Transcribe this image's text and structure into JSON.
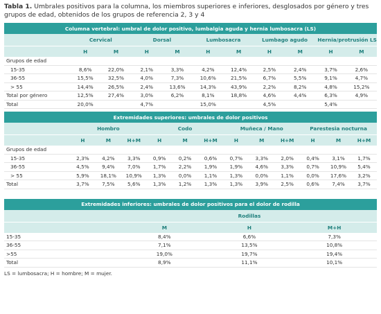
{
  "header": {
    "label": "Tabla 1.",
    "title": "Umbrales positivos para la columna, los miembros superiores e inferiores, desglosados por género y tres grupos de edad, obtenidos de los grupos de referencia 2, 3 y 4"
  },
  "sections": [
    {
      "title": "Columna vertebral: umbral de dolor positivo, lumbalgia aguda y hernia lumbosacra (LS)",
      "groups": [
        {
          "name": "Cervical",
          "columns": [
            "H",
            "M"
          ]
        },
        {
          "name": "Dorsal",
          "columns": [
            "H",
            "M"
          ]
        },
        {
          "name": "Lumbosacra",
          "columns": [
            "H",
            "M"
          ]
        },
        {
          "name": "Lumbago agudo",
          "columns": [
            "H",
            "M"
          ]
        },
        {
          "name": "Hernia/protrusión LS",
          "columns": [
            "H",
            "M"
          ]
        }
      ],
      "rows": [
        {
          "label": "Grupos de edad",
          "cells": []
        },
        {
          "label": "15-35",
          "cells": [
            "8,6%",
            "22,0%",
            "2,1%",
            "3,3%",
            "4,2%",
            "12,4%",
            "2,5%",
            "2,4%",
            "3,7%",
            "2,6%"
          ]
        },
        {
          "label": "36-55",
          "cells": [
            "15,5%",
            "32,5%",
            "4,0%",
            "7,3%",
            "10,6%",
            "21,5%",
            "6,7%",
            "5,5%",
            "9,1%",
            "4,7%"
          ]
        },
        {
          "label": "> 55",
          "cells": [
            "14,4%",
            "26,5%",
            "2,4%",
            "13,6%",
            "14,3%",
            "43,9%",
            "2,2%",
            "8,2%",
            "4,8%",
            "15,2%"
          ]
        },
        {
          "label": "Total por género",
          "cells": [
            "12,5%",
            "27,4%",
            "3,0%",
            "6,2%",
            "8,1%",
            "18,8%",
            "4,6%",
            "4,4%",
            "6,3%",
            "4,9%"
          ]
        },
        {
          "label": "Total",
          "cells": [
            "20,0%",
            null,
            "4,7%",
            null,
            "15,0%",
            null,
            "4,5%",
            null,
            "5,4%",
            null
          ]
        }
      ]
    },
    {
      "title": "Extremidades superiores: umbrales de dolor positivos",
      "groups": [
        {
          "name": "Hombro",
          "columns": [
            "H",
            "M",
            "H+M"
          ]
        },
        {
          "name": "Codo",
          "columns": [
            "H",
            "M",
            "H+M"
          ]
        },
        {
          "name": "Muñeca / Mano",
          "columns": [
            "H",
            "M",
            "H+M"
          ]
        },
        {
          "name": "Parestesia nocturna",
          "columns": [
            "H",
            "M",
            "H+M"
          ]
        }
      ],
      "rows": [
        {
          "label": "Grupos de edad",
          "cells": []
        },
        {
          "label": "15-35",
          "cells": [
            "2,3%",
            "4,2%",
            "3,3%",
            "0,9%",
            "0,2%",
            "0,6%",
            "0,7%",
            "3,3%",
            "2,0%",
            "0,4%",
            "3,1%",
            "1,7%"
          ]
        },
        {
          "label": "36-55",
          "cells": [
            "4,5%",
            "9,4%",
            "7,0%",
            "1,7%",
            "2,2%",
            "1,9%",
            "1,9%",
            "4,6%",
            "3,3%",
            "0,7%",
            "10,9%",
            "5,4%"
          ]
        },
        {
          "label": "> 55",
          "cells": [
            "5,9%",
            "18,1%",
            "10,9%",
            "1,3%",
            "0,0%",
            "1,1%",
            "1,3%",
            "0,0%",
            "1,1%",
            "0,0%",
            "17,6%",
            "3,2%"
          ]
        },
        {
          "label": "Total",
          "cells": [
            "3,7%",
            "7,5%",
            "5,6%",
            "1,3%",
            "1,2%",
            "1,3%",
            "1,3%",
            "3,9%",
            "2,5%",
            "0,6%",
            "7,4%",
            "3,7%"
          ]
        }
      ]
    },
    {
      "title": "Extremidades inferiores: umbrales de dolor positivos para el dolor de rodilla",
      "groups": [
        {
          "name": "Rodillas",
          "columns": [
            "M",
            "H",
            "M+H"
          ]
        }
      ],
      "rows": [
        {
          "label": "15-35",
          "cells": [
            "8,4%",
            "6,6%",
            "7,3%"
          ]
        },
        {
          "label": "36-55",
          "cells": [
            "7,1%",
            "13,5%",
            "10,8%"
          ]
        },
        {
          "label": ">55",
          "cells": [
            "19,0%",
            "19,7%",
            "19,4%"
          ]
        },
        {
          "label": "Total",
          "cells": [
            "8,9%",
            "11,1%",
            "10,1%"
          ]
        }
      ]
    }
  ],
  "footnote": "LS = lumbosacra; H = hombre; M = mujer."
}
